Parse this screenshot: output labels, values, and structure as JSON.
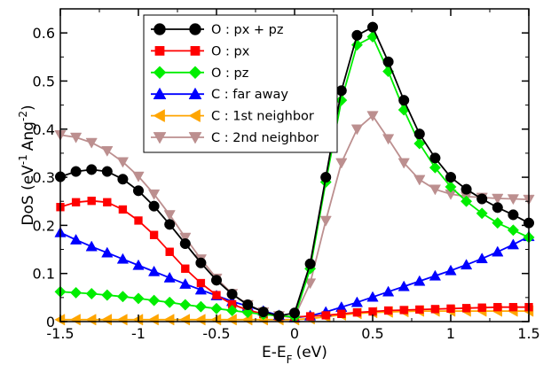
{
  "chart_data": {
    "type": "line",
    "xlabel": "E-E",
    "xlabel_sub": "F",
    "xlabel_unit": "(eV)",
    "ylabel": "DoS (eV",
    "ylabel_sup1": "-1",
    "ylabel_mid": "Ang",
    "ylabel_sup2": "-2",
    "ylabel_end": ")",
    "xlim": [
      -1.5,
      1.5
    ],
    "ylim": [
      0,
      0.65
    ],
    "xticks": [
      -1.5,
      -1,
      -0.5,
      0,
      0.5,
      1,
      1.5
    ],
    "xtick_labels": [
      "-1.5",
      "-1",
      "-0.5",
      "0",
      "0.5",
      "1",
      "1.5"
    ],
    "yticks": [
      0,
      0.1,
      0.2,
      0.3,
      0.4,
      0.5,
      0.6
    ],
    "ytick_labels": [
      "0",
      "0.1",
      "0.2",
      "0.3",
      "0.4",
      "0.5",
      "0.6"
    ],
    "legend_position": "top-left",
    "series": [
      {
        "name": "O : px + pz",
        "color": "#000000",
        "marker": "circle",
        "x": [
          -1.5,
          -1.4,
          -1.3,
          -1.2,
          -1.1,
          -1.0,
          -0.9,
          -0.8,
          -0.7,
          -0.6,
          -0.5,
          -0.4,
          -0.3,
          -0.2,
          -0.1,
          0.0,
          0.1,
          0.2,
          0.3,
          0.4,
          0.5,
          0.6,
          0.7,
          0.8,
          0.9,
          1.0,
          1.1,
          1.2,
          1.3,
          1.4,
          1.5
        ],
        "y": [
          0.301,
          0.312,
          0.316,
          0.312,
          0.296,
          0.272,
          0.24,
          0.202,
          0.162,
          0.122,
          0.086,
          0.057,
          0.035,
          0.02,
          0.012,
          0.018,
          0.12,
          0.3,
          0.48,
          0.595,
          0.612,
          0.54,
          0.46,
          0.39,
          0.34,
          0.3,
          0.275,
          0.255,
          0.237,
          0.222,
          0.205
        ]
      },
      {
        "name": "O : px",
        "color": "#ff0000",
        "marker": "square",
        "x": [
          -1.5,
          -1.4,
          -1.3,
          -1.2,
          -1.1,
          -1.0,
          -0.9,
          -0.8,
          -0.7,
          -0.6,
          -0.5,
          -0.4,
          -0.3,
          -0.2,
          -0.1,
          0.0,
          0.1,
          0.2,
          0.3,
          0.4,
          0.5,
          0.6,
          0.7,
          0.8,
          0.9,
          1.0,
          1.1,
          1.2,
          1.3,
          1.4,
          1.5
        ],
        "y": [
          0.238,
          0.248,
          0.251,
          0.248,
          0.233,
          0.21,
          0.18,
          0.145,
          0.11,
          0.08,
          0.055,
          0.036,
          0.024,
          0.016,
          0.011,
          0.01,
          0.011,
          0.013,
          0.016,
          0.019,
          0.021,
          0.023,
          0.024,
          0.025,
          0.026,
          0.027,
          0.028,
          0.029,
          0.03,
          0.03,
          0.03
        ]
      },
      {
        "name": "O : pz",
        "color": "#00ee00",
        "marker": "diamond",
        "x": [
          -1.5,
          -1.4,
          -1.3,
          -1.2,
          -1.1,
          -1.0,
          -0.9,
          -0.8,
          -0.7,
          -0.6,
          -0.5,
          -0.4,
          -0.3,
          -0.2,
          -0.1,
          0.0,
          0.1,
          0.2,
          0.3,
          0.4,
          0.5,
          0.6,
          0.7,
          0.8,
          0.9,
          1.0,
          1.1,
          1.2,
          1.3,
          1.4,
          1.5
        ],
        "y": [
          0.062,
          0.06,
          0.058,
          0.055,
          0.052,
          0.048,
          0.044,
          0.04,
          0.035,
          0.031,
          0.027,
          0.023,
          0.019,
          0.015,
          0.012,
          0.01,
          0.11,
          0.29,
          0.46,
          0.575,
          0.592,
          0.52,
          0.44,
          0.37,
          0.32,
          0.28,
          0.25,
          0.225,
          0.205,
          0.19,
          0.175
        ]
      },
      {
        "name": "C : far away",
        "color": "#0000ff",
        "marker": "triangle-up",
        "x": [
          -1.5,
          -1.4,
          -1.3,
          -1.2,
          -1.1,
          -1.0,
          -0.9,
          -0.8,
          -0.7,
          -0.6,
          -0.5,
          -0.4,
          -0.3,
          -0.2,
          -0.1,
          0.0,
          0.1,
          0.2,
          0.3,
          0.4,
          0.5,
          0.6,
          0.7,
          0.8,
          0.9,
          1.0,
          1.1,
          1.2,
          1.3,
          1.4,
          1.5
        ],
        "y": [
          0.185,
          0.17,
          0.156,
          0.143,
          0.13,
          0.117,
          0.104,
          0.091,
          0.078,
          0.066,
          0.054,
          0.042,
          0.032,
          0.022,
          0.013,
          0.008,
          0.012,
          0.02,
          0.03,
          0.04,
          0.051,
          0.062,
          0.073,
          0.084,
          0.095,
          0.106,
          0.118,
          0.131,
          0.145,
          0.16,
          0.177
        ]
      },
      {
        "name": "C : 1st neighbor",
        "color": "#ffa500",
        "marker": "triangle-left",
        "x": [
          -1.5,
          -1.4,
          -1.3,
          -1.2,
          -1.1,
          -1.0,
          -0.9,
          -0.8,
          -0.7,
          -0.6,
          -0.5,
          -0.4,
          -0.3,
          -0.2,
          -0.1,
          0.0,
          0.1,
          0.2,
          0.3,
          0.4,
          0.5,
          0.6,
          0.7,
          0.8,
          0.9,
          1.0,
          1.1,
          1.2,
          1.3,
          1.4,
          1.5
        ],
        "y": [
          0.004,
          0.004,
          0.004,
          0.004,
          0.004,
          0.004,
          0.004,
          0.004,
          0.004,
          0.004,
          0.004,
          0.004,
          0.004,
          0.004,
          0.004,
          0.004,
          0.006,
          0.01,
          0.014,
          0.017,
          0.019,
          0.02,
          0.021,
          0.022,
          0.022,
          0.022,
          0.022,
          0.022,
          0.022,
          0.022,
          0.022
        ]
      },
      {
        "name": "C : 2nd neighbor",
        "color": "#bc8f8f",
        "marker": "triangle-down",
        "x": [
          -1.5,
          -1.4,
          -1.3,
          -1.2,
          -1.1,
          -1.0,
          -0.9,
          -0.8,
          -0.7,
          -0.6,
          -0.5,
          -0.4,
          -0.3,
          -0.2,
          -0.1,
          0.0,
          0.1,
          0.2,
          0.3,
          0.4,
          0.5,
          0.6,
          0.7,
          0.8,
          0.9,
          1.0,
          1.1,
          1.2,
          1.3,
          1.4,
          1.5
        ],
        "y": [
          0.388,
          0.383,
          0.372,
          0.355,
          0.332,
          0.302,
          0.265,
          0.222,
          0.175,
          0.13,
          0.09,
          0.058,
          0.035,
          0.02,
          0.012,
          0.01,
          0.08,
          0.21,
          0.33,
          0.4,
          0.428,
          0.38,
          0.33,
          0.295,
          0.275,
          0.265,
          0.26,
          0.258,
          0.256,
          0.255,
          0.254
        ]
      }
    ]
  }
}
